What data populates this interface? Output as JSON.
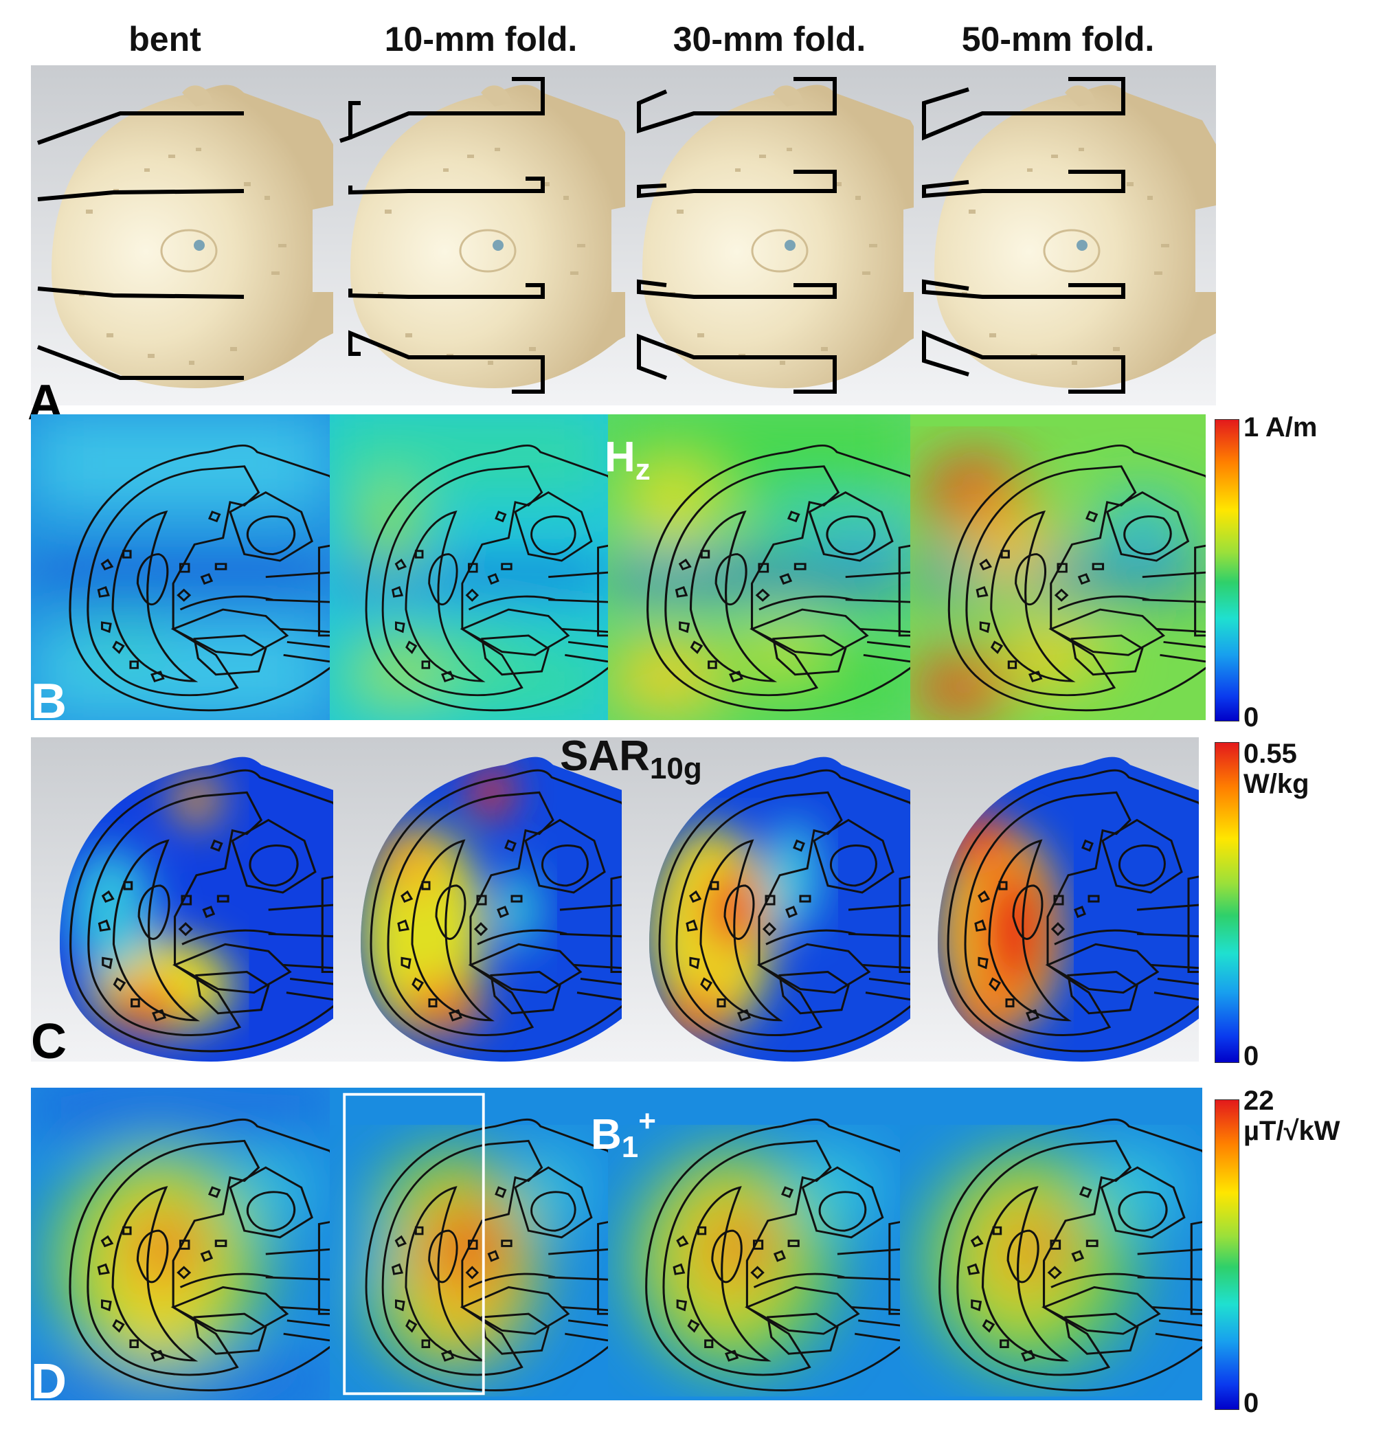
{
  "columns": [
    "bent",
    "10-mm fold.",
    "30-mm fold.",
    "50-mm fold."
  ],
  "rows": {
    "a": {
      "label": "A"
    },
    "b": {
      "label": "B",
      "field_main": "H",
      "field_sub": "z",
      "scale_max": "1 A/m",
      "scale_min": "0"
    },
    "c": {
      "label": "C",
      "field_main": "SAR",
      "field_sub": "10g",
      "scale_max_line1": "0.55",
      "scale_max_line2": "W/kg",
      "scale_min": "0"
    },
    "d": {
      "label": "D",
      "field_main": "B",
      "field_sub": "1",
      "field_sup": "+",
      "scale_max_line1": "22",
      "scale_max_line2": "µT/√kW",
      "scale_min": "0"
    }
  },
  "colors": {
    "colormap_top": "#e31a1c",
    "colormap_bottom": "#0000c8",
    "coil": "#000000",
    "roi_box": "#ffffff"
  }
}
